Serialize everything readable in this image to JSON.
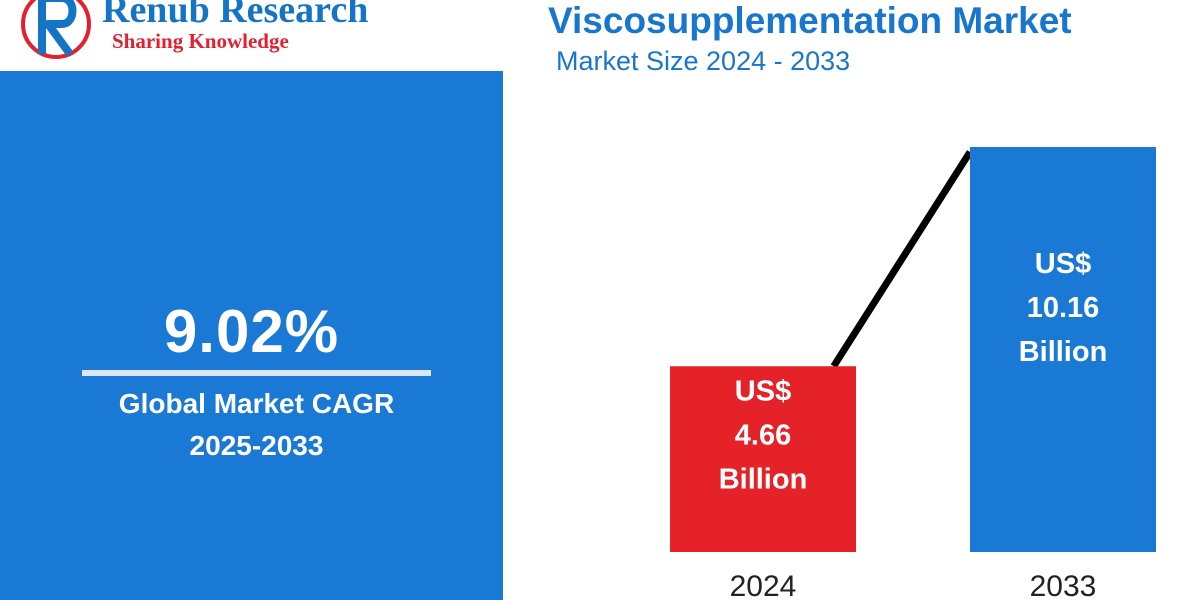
{
  "brand": {
    "name": "Renub Research",
    "tagline": "Sharing Knowledge",
    "colors": {
      "blue": "#1674c6",
      "red": "#e4202e"
    }
  },
  "header": {
    "title": "Viscosupplementation Market",
    "subtitle": "Market Size 2024 - 2033"
  },
  "cagr": {
    "value": "9.02%",
    "label_line1": "Global Market CAGR",
    "label_line2": "2025-2033",
    "panel_color": "#1b79d6"
  },
  "chart_data": {
    "type": "bar",
    "title": "Viscosupplementation Market",
    "subtitle": "Market Size 2024 - 2033",
    "categories": [
      "2024",
      "2033"
    ],
    "values": [
      4.66,
      10.16
    ],
    "value_labels": [
      [
        "US$",
        "4.66",
        "Billion"
      ],
      [
        "US$",
        "10.16",
        "Billion"
      ]
    ],
    "colors": [
      "#e42227",
      "#1b79d6"
    ],
    "trend_line": true,
    "grid": false,
    "legend": "none",
    "ylim": [
      0,
      10.16
    ]
  }
}
